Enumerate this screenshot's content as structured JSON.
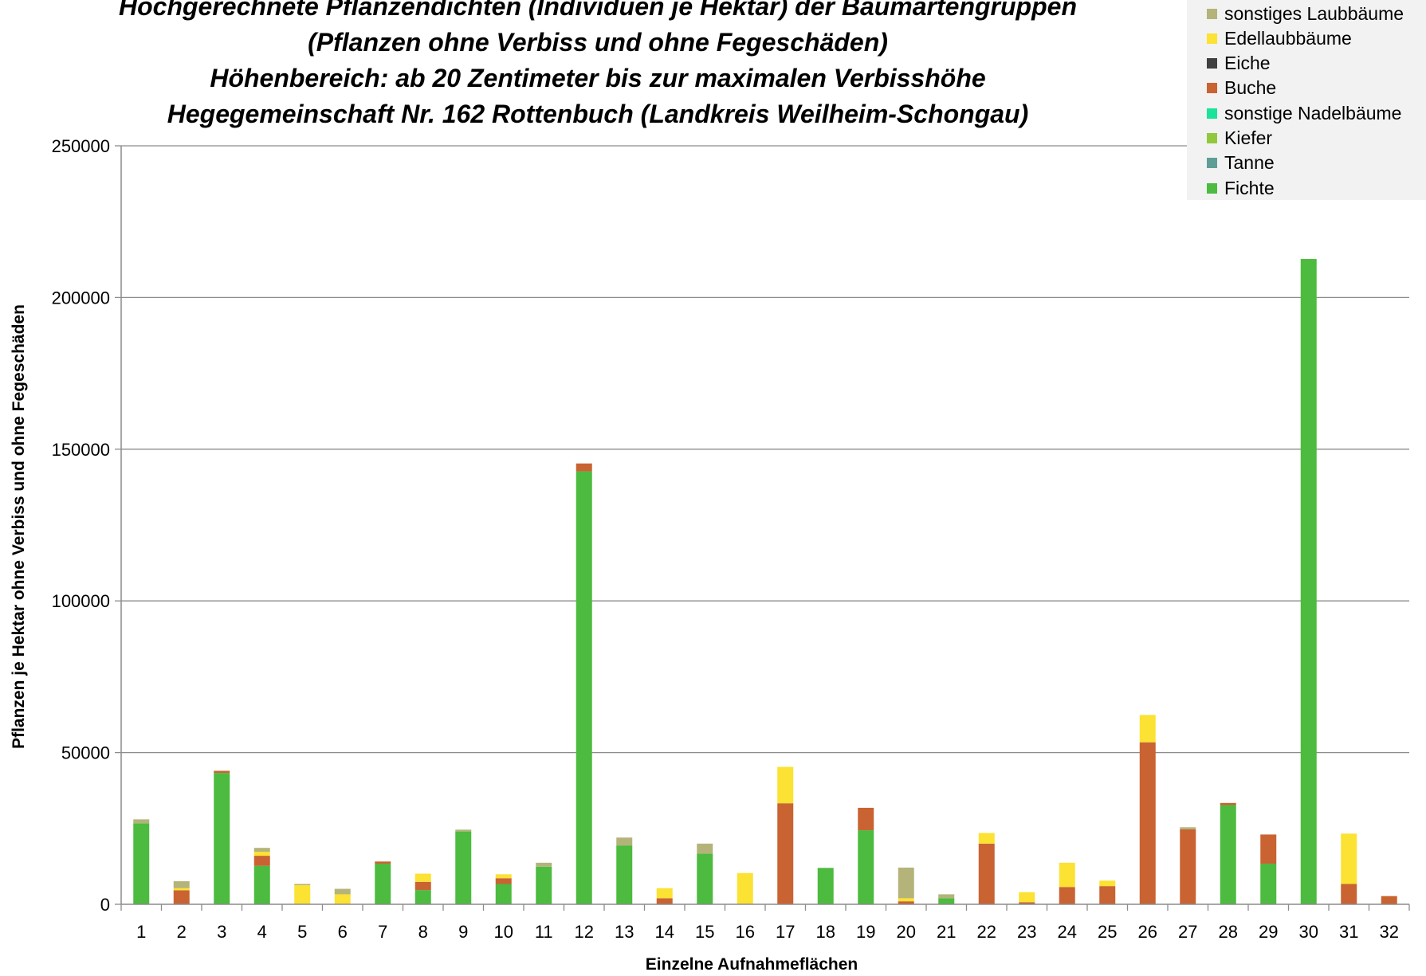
{
  "chart_data": {
    "type": "bar",
    "stacked": true,
    "title_lines": [
      "Hochgerechnete Pflanzendichten (Individuen je Hektar) der Baumartengruppen",
      "(Pflanzen ohne Verbiss und ohne Fegeschäden)",
      "Höhenbereich: ab 20 Zentimeter bis zur maximalen Verbisshöhe",
      "Hegegemeinschaft Nr. 162 Rottenbuch (Landkreis Weilheim-Schongau)"
    ],
    "xlabel": "Einzelne Aufnahmeflächen",
    "ylabel": "Pflanzen je Hektar ohne Verbiss und ohne Fegeschäden",
    "ylim": [
      0,
      250000
    ],
    "yticks": [
      0,
      50000,
      100000,
      150000,
      200000,
      250000
    ],
    "grid": true,
    "legend_position": "top-right",
    "categories": [
      "1",
      "2",
      "3",
      "4",
      "5",
      "6",
      "7",
      "8",
      "9",
      "10",
      "11",
      "12",
      "13",
      "14",
      "15",
      "16",
      "17",
      "18",
      "19",
      "20",
      "21",
      "22",
      "23",
      "24",
      "25",
      "26",
      "27",
      "28",
      "29",
      "30",
      "31",
      "32"
    ],
    "series": [
      {
        "name": "Fichte",
        "color": "#4cbb3f",
        "values": [
          26700,
          0,
          43300,
          12700,
          0,
          0,
          13400,
          4700,
          24000,
          6700,
          12400,
          142700,
          19400,
          0,
          16700,
          0,
          0,
          12000,
          24400,
          0,
          2000,
          0,
          0,
          0,
          0,
          0,
          0,
          32700,
          13400,
          212700,
          0,
          0
        ]
      },
      {
        "name": "Tanne",
        "color": "#5f9e96",
        "values": [
          0,
          0,
          0,
          0,
          0,
          0,
          0,
          0,
          0,
          0,
          0,
          0,
          0,
          0,
          0,
          0,
          0,
          0,
          0,
          0,
          0,
          0,
          0,
          0,
          0,
          0,
          0,
          0,
          0,
          0,
          0,
          0
        ]
      },
      {
        "name": "Kiefer",
        "color": "#92c83e",
        "values": [
          0,
          0,
          0,
          0,
          0,
          0,
          0,
          0,
          0,
          0,
          0,
          0,
          0,
          0,
          0,
          0,
          0,
          0,
          0,
          0,
          0,
          0,
          0,
          0,
          0,
          0,
          0,
          0,
          0,
          0,
          0,
          0
        ]
      },
      {
        "name": "sonstige Nadelbäume",
        "color": "#1be49a",
        "values": [
          0,
          0,
          0,
          0,
          0,
          0,
          0,
          0,
          0,
          0,
          0,
          0,
          0,
          0,
          0,
          0,
          0,
          0,
          0,
          0,
          0,
          0,
          0,
          0,
          0,
          0,
          0,
          0,
          0,
          0,
          0,
          0
        ]
      },
      {
        "name": "Buche",
        "color": "#c96332",
        "values": [
          0,
          4600,
          700,
          3300,
          0,
          0,
          700,
          2700,
          0,
          1900,
          0,
          2600,
          0,
          2000,
          0,
          0,
          33300,
          0,
          7400,
          1000,
          0,
          20000,
          700,
          5700,
          6000,
          53400,
          24700,
          700,
          9600,
          0,
          6700,
          2700
        ]
      },
      {
        "name": "Eiche",
        "color": "#404040",
        "values": [
          0,
          0,
          0,
          0,
          0,
          0,
          0,
          0,
          0,
          0,
          0,
          0,
          0,
          0,
          0,
          0,
          0,
          0,
          0,
          0,
          0,
          0,
          0,
          0,
          0,
          0,
          0,
          0,
          0,
          0,
          0,
          0
        ]
      },
      {
        "name": "Edellaubbäume",
        "color": "#fbe233",
        "values": [
          0,
          700,
          0,
          1300,
          6300,
          3300,
          0,
          2700,
          0,
          1300,
          0,
          0,
          0,
          3300,
          0,
          10300,
          12000,
          0,
          0,
          1000,
          0,
          3500,
          3300,
          8000,
          1800,
          9000,
          0,
          0,
          0,
          0,
          16600,
          0
        ]
      },
      {
        "name": "sonstiges Laubbäume",
        "color": "#b4b47a",
        "values": [
          1300,
          2300,
          0,
          1300,
          400,
          1800,
          0,
          0,
          600,
          0,
          1300,
          0,
          2600,
          0,
          3300,
          0,
          0,
          0,
          0,
          10100,
          1300,
          0,
          0,
          0,
          0,
          0,
          700,
          0,
          0,
          0,
          0,
          0
        ]
      }
    ]
  }
}
